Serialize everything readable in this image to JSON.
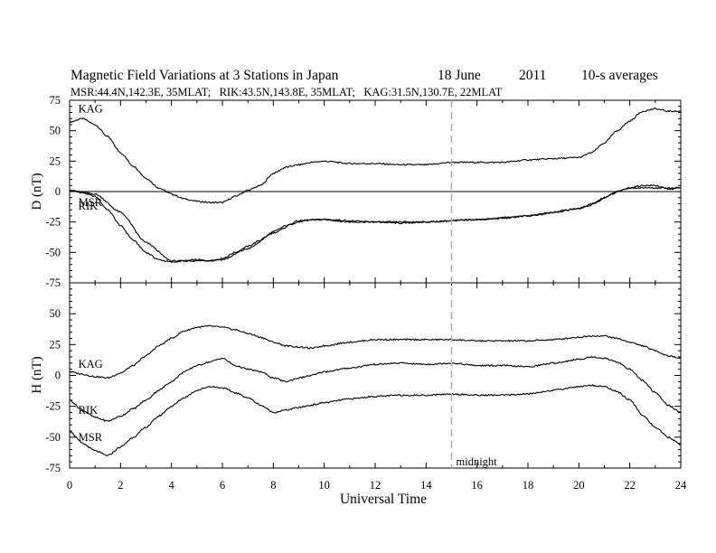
{
  "title": "Magnetic Field Variations at 3 Stations in Japan",
  "date_label": "18 June",
  "year_label": "2011",
  "avg_label": "10-s averages",
  "stations_line": "MSR:44.4N,142.3E, 35MLAT;   RIK:43.5N,143.8E, 35MLAT;   KAG:31.5N,130.7E, 22MLAT",
  "chart_data": [
    {
      "type": "line",
      "panel": "top",
      "ylabel": "D (nT)",
      "xlabel": "Universal Time",
      "xlim": [
        0,
        24
      ],
      "ylim": [
        -75,
        75
      ],
      "y_ticks": [
        75,
        50,
        25,
        0,
        -25,
        -50,
        -75
      ],
      "zero_line": true,
      "series": [
        {
          "name": "KAG",
          "label": "KAG",
          "label_at": [
            0.2,
            68
          ],
          "x": [
            0,
            0.5,
            1,
            1.5,
            2,
            2.5,
            3,
            3.5,
            4,
            4.5,
            5,
            5.5,
            6,
            6.5,
            7,
            7.5,
            8,
            8.5,
            9,
            9.5,
            10,
            11,
            12,
            13,
            14,
            15,
            16,
            17,
            18,
            19,
            20,
            20.5,
            21,
            21.5,
            22,
            22.5,
            23,
            23.5,
            24
          ],
          "y": [
            57,
            60,
            55,
            45,
            32,
            21,
            11,
            3,
            -2,
            -6,
            -8,
            -9,
            -9,
            -4,
            1,
            5,
            15,
            20,
            22,
            24,
            25,
            23,
            23,
            22,
            22,
            24,
            24,
            24,
            26,
            27,
            28,
            32,
            40,
            50,
            58,
            66,
            68,
            66,
            66
          ]
        },
        {
          "name": "RIK",
          "label": "RIK",
          "label_at": [
            0.2,
            -12
          ],
          "x": [
            0,
            0.5,
            1,
            1.5,
            2,
            2.5,
            3,
            3.5,
            4,
            4.5,
            5,
            5.5,
            6,
            6.5,
            7,
            7.5,
            8,
            8.5,
            9,
            9.5,
            10,
            11,
            12,
            13,
            14,
            15,
            16,
            17,
            18,
            19,
            20,
            20.5,
            21,
            21.5,
            22,
            22.5,
            23,
            23.5,
            24
          ],
          "y": [
            1,
            -1,
            -4,
            -15,
            -28,
            -40,
            -50,
            -56,
            -58,
            -57,
            -56,
            -57,
            -55,
            -50,
            -45,
            -40,
            -33,
            -28,
            -25,
            -23,
            -23,
            -25,
            -25,
            -26,
            -25,
            -24,
            -23,
            -22,
            -20,
            -17,
            -14,
            -10,
            -5,
            0,
            3,
            5,
            5,
            2,
            3
          ]
        },
        {
          "name": "MSR",
          "label": "MSR",
          "label_at": [
            0.2,
            -9
          ],
          "x": [
            0,
            1,
            2,
            3,
            4,
            5,
            6,
            7,
            8,
            9,
            10,
            12,
            14,
            16,
            18,
            20,
            22,
            24
          ],
          "y": [
            1,
            -2,
            -17,
            -42,
            -57,
            -57,
            -56,
            -47,
            -34,
            -24,
            -23,
            -25,
            -25,
            -23,
            -20,
            -14,
            3,
            3
          ]
        }
      ]
    },
    {
      "type": "line",
      "panel": "bottom",
      "ylabel": "H (nT)",
      "xlabel": "Universal Time",
      "xlim": [
        0,
        24
      ],
      "ylim": [
        -75,
        75
      ],
      "y_ticks": [
        50,
        25,
        0,
        -25,
        -50,
        -75
      ],
      "x_ticks": [
        0,
        2,
        4,
        6,
        8,
        10,
        12,
        14,
        16,
        18,
        20,
        22,
        24
      ],
      "annotation": "midnight",
      "midnight_ut": 15,
      "series": [
        {
          "name": "KAG",
          "label": "KAG",
          "label_at": [
            0.2,
            9
          ],
          "x": [
            0,
            0.5,
            1,
            1.5,
            2,
            2.5,
            3,
            3.5,
            4,
            4.5,
            5,
            5.5,
            6,
            6.5,
            7,
            7.5,
            8,
            8.5,
            9,
            9.5,
            10,
            11,
            12,
            13,
            14,
            15,
            16,
            17,
            18,
            19,
            20,
            20.5,
            21,
            21.5,
            22,
            22.5,
            23,
            23.5,
            24
          ],
          "y": [
            3,
            1,
            -1,
            -2,
            2,
            8,
            16,
            24,
            30,
            36,
            39,
            40,
            39,
            37,
            34,
            31,
            27,
            24,
            23,
            22,
            24,
            27,
            29,
            29,
            29,
            29,
            28,
            28,
            28,
            29,
            31,
            32,
            32,
            30,
            27,
            24,
            20,
            16,
            14
          ]
        },
        {
          "name": "RIK",
          "label": "RIK",
          "label_at": [
            0.2,
            -28
          ],
          "x": [
            0,
            0.5,
            1,
            1.5,
            2,
            2.5,
            3,
            3.5,
            4,
            4.5,
            5,
            5.5,
            6,
            6.5,
            7,
            7.5,
            8,
            8.5,
            9,
            9.5,
            10,
            11,
            12,
            13,
            14,
            15,
            16,
            17,
            18,
            19,
            20,
            20.5,
            21,
            21.5,
            22,
            22.5,
            23,
            23.5,
            24
          ],
          "y": [
            -20,
            -28,
            -34,
            -37,
            -33,
            -27,
            -20,
            -12,
            -5,
            3,
            8,
            11,
            14,
            8,
            5,
            3,
            -2,
            -5,
            -2,
            0,
            3,
            6,
            9,
            10,
            9,
            10,
            8,
            8,
            7,
            10,
            13,
            15,
            14,
            11,
            5,
            -4,
            -14,
            -24,
            -30
          ]
        },
        {
          "name": "MSR",
          "label": "MSR",
          "label_at": [
            0.2,
            -50
          ],
          "x": [
            0,
            0.5,
            1,
            1.5,
            2,
            2.5,
            3,
            3.5,
            4,
            4.5,
            5,
            5.5,
            6,
            6.5,
            7,
            7.5,
            8,
            8.5,
            9,
            9.5,
            10,
            11,
            12,
            13,
            14,
            15,
            16,
            17,
            18,
            19,
            20,
            20.5,
            21,
            21.5,
            22,
            22.5,
            23,
            23.5,
            24
          ],
          "y": [
            -45,
            -55,
            -61,
            -65,
            -58,
            -50,
            -42,
            -33,
            -25,
            -18,
            -12,
            -9,
            -10,
            -14,
            -18,
            -24,
            -30,
            -28,
            -26,
            -24,
            -22,
            -19,
            -17,
            -16,
            -16,
            -15,
            -16,
            -16,
            -15,
            -12,
            -9,
            -8,
            -9,
            -13,
            -20,
            -32,
            -42,
            -50,
            -56
          ]
        }
      ]
    }
  ]
}
